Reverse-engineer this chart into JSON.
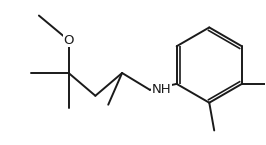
{
  "bg_color": "#ffffff",
  "line_color": "#1a1a1a",
  "line_width": 1.4,
  "figsize": [
    2.66,
    1.45
  ],
  "dpi": 100,
  "xlim": [
    0,
    266
  ],
  "ylim": [
    0,
    145
  ],
  "font_size_atom": 9.5,
  "font_size_small": 8.0
}
